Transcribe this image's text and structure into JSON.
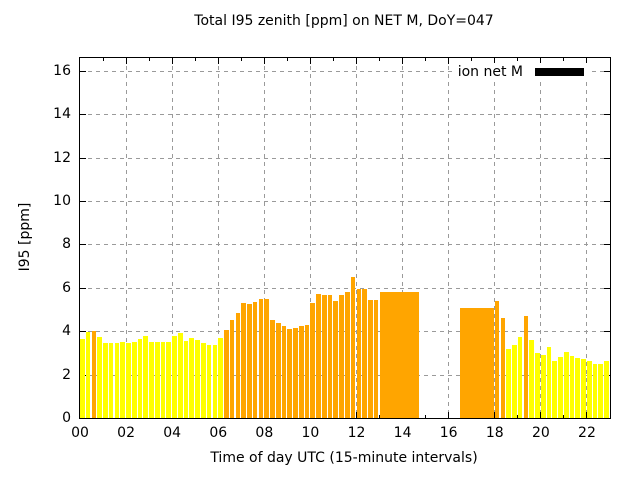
{
  "title": "Total I95 zenith [ppm] on NET M, DoY=047",
  "legend": {
    "label": "ion net M",
    "swatch_color": "#000000"
  },
  "chart_data": {
    "type": "bar",
    "title": "Total I95 zenith [ppm] on NET M, DoY=047",
    "xlabel": "Time of day UTC (15-minute intervals)",
    "ylabel": "I95 [ppm]",
    "ylim": [
      0,
      16
    ],
    "xlim_hours": [
      0,
      23
    ],
    "grid": true,
    "legend_position": "top-right-inside",
    "y_ticks": [
      0,
      2,
      4,
      6,
      8,
      10,
      12,
      14,
      16
    ],
    "x_tick_labels": [
      "00",
      "02",
      "04",
      "06",
      "08",
      "10",
      "12",
      "14",
      "16",
      "18",
      "20",
      "22"
    ],
    "interval_minutes": 15,
    "colors": {
      "yellow": "#ffff00",
      "orange": "#ffa500"
    },
    "data_gap": "no bars from 14:45 through 16:15",
    "points": [
      {
        "t": "00:00",
        "v": 3.65,
        "c": "yellow"
      },
      {
        "t": "00:15",
        "v": 3.95,
        "c": "yellow"
      },
      {
        "t": "00:30",
        "v": 4.0,
        "c": "orange"
      },
      {
        "t": "00:45",
        "v": 3.75,
        "c": "yellow"
      },
      {
        "t": "01:00",
        "v": 3.45,
        "c": "yellow"
      },
      {
        "t": "01:15",
        "v": 3.45,
        "c": "yellow"
      },
      {
        "t": "01:30",
        "v": 3.45,
        "c": "yellow"
      },
      {
        "t": "01:45",
        "v": 3.5,
        "c": "yellow"
      },
      {
        "t": "02:00",
        "v": 3.45,
        "c": "yellow"
      },
      {
        "t": "02:15",
        "v": 3.5,
        "c": "yellow"
      },
      {
        "t": "02:30",
        "v": 3.65,
        "c": "yellow"
      },
      {
        "t": "02:45",
        "v": 3.8,
        "c": "yellow"
      },
      {
        "t": "03:00",
        "v": 3.5,
        "c": "yellow"
      },
      {
        "t": "03:15",
        "v": 3.5,
        "c": "yellow"
      },
      {
        "t": "03:30",
        "v": 3.5,
        "c": "yellow"
      },
      {
        "t": "03:45",
        "v": 3.5,
        "c": "yellow"
      },
      {
        "t": "04:00",
        "v": 3.8,
        "c": "yellow"
      },
      {
        "t": "04:15",
        "v": 3.9,
        "c": "yellow"
      },
      {
        "t": "04:30",
        "v": 3.55,
        "c": "yellow"
      },
      {
        "t": "04:45",
        "v": 3.7,
        "c": "yellow"
      },
      {
        "t": "05:00",
        "v": 3.6,
        "c": "yellow"
      },
      {
        "t": "05:15",
        "v": 3.45,
        "c": "yellow"
      },
      {
        "t": "05:30",
        "v": 3.35,
        "c": "yellow"
      },
      {
        "t": "05:45",
        "v": 3.35,
        "c": "yellow"
      },
      {
        "t": "06:00",
        "v": 3.7,
        "c": "yellow"
      },
      {
        "t": "06:15",
        "v": 4.05,
        "c": "orange"
      },
      {
        "t": "06:30",
        "v": 4.5,
        "c": "orange"
      },
      {
        "t": "06:45",
        "v": 4.85,
        "c": "orange"
      },
      {
        "t": "07:00",
        "v": 5.3,
        "c": "orange"
      },
      {
        "t": "07:15",
        "v": 5.25,
        "c": "orange"
      },
      {
        "t": "07:30",
        "v": 5.35,
        "c": "orange"
      },
      {
        "t": "07:45",
        "v": 5.5,
        "c": "orange"
      },
      {
        "t": "08:00",
        "v": 5.5,
        "c": "orange"
      },
      {
        "t": "08:15",
        "v": 4.5,
        "c": "orange"
      },
      {
        "t": "08:30",
        "v": 4.4,
        "c": "orange"
      },
      {
        "t": "08:45",
        "v": 4.25,
        "c": "orange"
      },
      {
        "t": "09:00",
        "v": 4.1,
        "c": "orange"
      },
      {
        "t": "09:15",
        "v": 4.15,
        "c": "orange"
      },
      {
        "t": "09:30",
        "v": 4.25,
        "c": "orange"
      },
      {
        "t": "09:45",
        "v": 4.3,
        "c": "orange"
      },
      {
        "t": "10:00",
        "v": 5.3,
        "c": "orange"
      },
      {
        "t": "10:15",
        "v": 5.7,
        "c": "orange"
      },
      {
        "t": "10:30",
        "v": 5.65,
        "c": "orange"
      },
      {
        "t": "10:45",
        "v": 5.65,
        "c": "orange"
      },
      {
        "t": "11:00",
        "v": 5.4,
        "c": "orange"
      },
      {
        "t": "11:15",
        "v": 5.65,
        "c": "orange"
      },
      {
        "t": "11:30",
        "v": 5.8,
        "c": "orange"
      },
      {
        "t": "11:45",
        "v": 6.5,
        "c": "orange"
      },
      {
        "t": "12:00",
        "v": 5.95,
        "c": "orange"
      },
      {
        "t": "12:15",
        "v": 5.95,
        "c": "orange"
      },
      {
        "t": "12:30",
        "v": 5.45,
        "c": "orange"
      },
      {
        "t": "12:45",
        "v": 5.45,
        "c": "orange"
      },
      {
        "t": "13:00",
        "v": 5.8,
        "c": "orange",
        "solid": true
      },
      {
        "t": "13:15",
        "v": 5.8,
        "c": "orange",
        "solid": true
      },
      {
        "t": "13:30",
        "v": 5.8,
        "c": "orange",
        "solid": true
      },
      {
        "t": "13:45",
        "v": 5.8,
        "c": "orange",
        "solid": true
      },
      {
        "t": "14:00",
        "v": 5.8,
        "c": "orange",
        "solid": true
      },
      {
        "t": "14:15",
        "v": 5.8,
        "c": "orange",
        "solid": true
      },
      {
        "t": "14:30",
        "v": 5.8,
        "c": "orange"
      },
      {
        "t": "16:30",
        "v": 5.05,
        "c": "orange",
        "solid": true
      },
      {
        "t": "16:45",
        "v": 5.05,
        "c": "orange",
        "solid": true
      },
      {
        "t": "17:00",
        "v": 5.05,
        "c": "orange",
        "solid": true
      },
      {
        "t": "17:15",
        "v": 5.05,
        "c": "orange",
        "solid": true
      },
      {
        "t": "17:30",
        "v": 5.05,
        "c": "orange",
        "solid": true
      },
      {
        "t": "17:45",
        "v": 5.05,
        "c": "orange"
      },
      {
        "t": "18:00",
        "v": 5.4,
        "c": "orange"
      },
      {
        "t": "18:15",
        "v": 4.6,
        "c": "orange"
      },
      {
        "t": "18:30",
        "v": 3.2,
        "c": "yellow"
      },
      {
        "t": "18:45",
        "v": 3.35,
        "c": "yellow"
      },
      {
        "t": "19:00",
        "v": 3.75,
        "c": "yellow"
      },
      {
        "t": "19:15",
        "v": 4.7,
        "c": "orange"
      },
      {
        "t": "19:30",
        "v": 3.6,
        "c": "yellow"
      },
      {
        "t": "19:45",
        "v": 3.0,
        "c": "yellow"
      },
      {
        "t": "20:00",
        "v": 2.9,
        "c": "yellow"
      },
      {
        "t": "20:15",
        "v": 3.25,
        "c": "yellow"
      },
      {
        "t": "20:30",
        "v": 2.65,
        "c": "yellow"
      },
      {
        "t": "20:45",
        "v": 2.8,
        "c": "yellow"
      },
      {
        "t": "21:00",
        "v": 3.05,
        "c": "yellow"
      },
      {
        "t": "21:15",
        "v": 2.85,
        "c": "yellow"
      },
      {
        "t": "21:30",
        "v": 2.75,
        "c": "yellow"
      },
      {
        "t": "21:45",
        "v": 2.7,
        "c": "yellow"
      },
      {
        "t": "22:00",
        "v": 2.65,
        "c": "yellow"
      },
      {
        "t": "22:15",
        "v": 2.5,
        "c": "yellow"
      },
      {
        "t": "22:30",
        "v": 2.5,
        "c": "yellow"
      },
      {
        "t": "22:45",
        "v": 2.65,
        "c": "yellow"
      }
    ]
  }
}
